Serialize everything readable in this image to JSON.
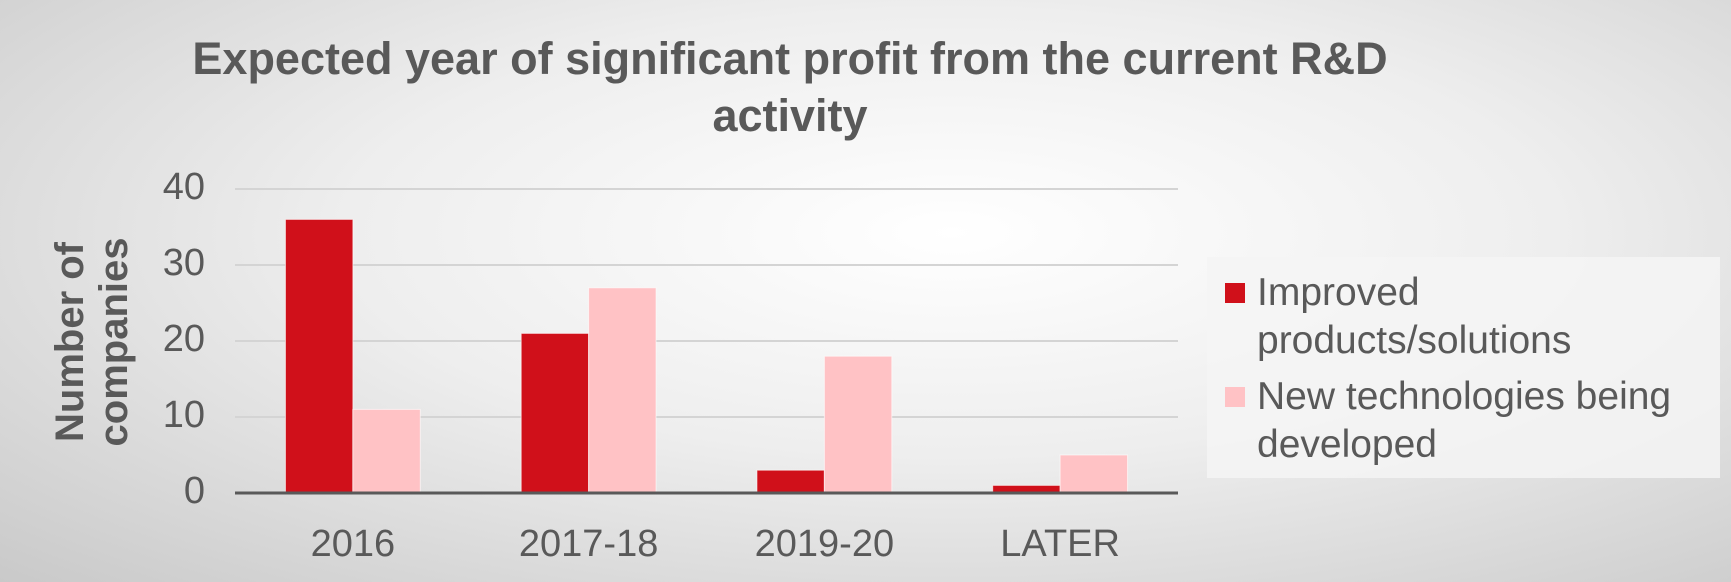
{
  "chart_data": {
    "type": "bar",
    "title": "Expected year of significant profit from the current R&D activity",
    "y_label": "Number of companies",
    "categories": [
      "2016",
      "2017-18",
      "2019-20",
      "LATER"
    ],
    "series": [
      {
        "name": "Improved products/solutions",
        "color": "#d0101a",
        "values": [
          36,
          21,
          3,
          1
        ]
      },
      {
        "name": "New technologies being developed",
        "color": "#ffc2c5",
        "values": [
          11,
          27,
          18,
          5
        ]
      }
    ],
    "ylim": [
      0,
      40
    ],
    "yticks": [
      0,
      10,
      20,
      30,
      40
    ],
    "grid": true,
    "legend": "right"
  }
}
